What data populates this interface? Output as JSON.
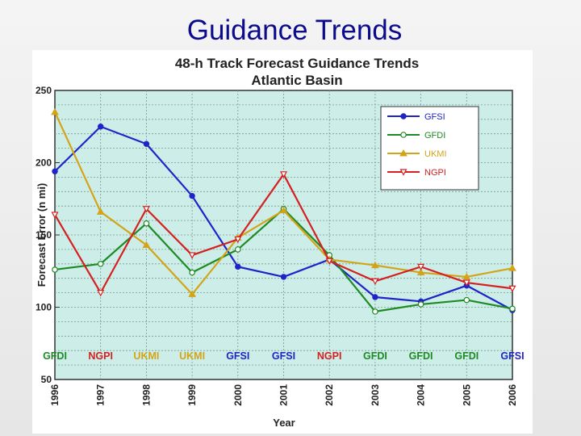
{
  "slide": {
    "title": "Guidance Trends"
  },
  "chart_data": {
    "type": "line",
    "title": "48-h Track Forecast Guidance Trends",
    "subtitle": "Atlantic Basin",
    "xlabel": "Year",
    "ylabel": "Forecast Error (n mi)",
    "ylim": [
      50,
      250
    ],
    "yticks": [
      50,
      100,
      150,
      200,
      250
    ],
    "grid": true,
    "legend_position": "top-right",
    "x": [
      "1996",
      "1997",
      "1998",
      "1999",
      "2000",
      "2001",
      "2002",
      "2003",
      "2004",
      "2005",
      "2006"
    ],
    "series": [
      {
        "name": "GFSI",
        "color": "#1f24c8",
        "marker": "filled-circle",
        "values": [
          194,
          225,
          213,
          177,
          128,
          121,
          133,
          107,
          104,
          115,
          98
        ]
      },
      {
        "name": "GFDI",
        "color": "#1f8a24",
        "marker": "open-circle",
        "values": [
          126,
          130,
          158,
          124,
          140,
          168,
          136,
          97,
          102,
          105,
          99
        ]
      },
      {
        "name": "UKMI",
        "color": "#d4a418",
        "marker": "triangle",
        "values": [
          235,
          166,
          143,
          109,
          148,
          167,
          133,
          129,
          124,
          121,
          127
        ]
      },
      {
        "name": "NGPI",
        "color": "#d42020",
        "marker": "open-triangle-down",
        "values": [
          164,
          110,
          168,
          136,
          147,
          192,
          132,
          118,
          128,
          117,
          113
        ]
      }
    ],
    "best_model": [
      {
        "label": "GFDI",
        "color": "#1f8a24"
      },
      {
        "label": "NGPI",
        "color": "#d42020"
      },
      {
        "label": "UKMI",
        "color": "#d4a418"
      },
      {
        "label": "UKMI",
        "color": "#d4a418"
      },
      {
        "label": "GFSI",
        "color": "#1f24c8"
      },
      {
        "label": "GFSI",
        "color": "#1f24c8"
      },
      {
        "label": "NGPI",
        "color": "#d42020"
      },
      {
        "label": "GFDI",
        "color": "#1f8a24"
      },
      {
        "label": "GFDI",
        "color": "#1f8a24"
      },
      {
        "label": "GFDI",
        "color": "#1f8a24"
      },
      {
        "label": "GFSI",
        "color": "#1f24c8"
      }
    ],
    "colors": {
      "plot_background": "#cdeee8",
      "grid": "#7a9a90"
    }
  }
}
